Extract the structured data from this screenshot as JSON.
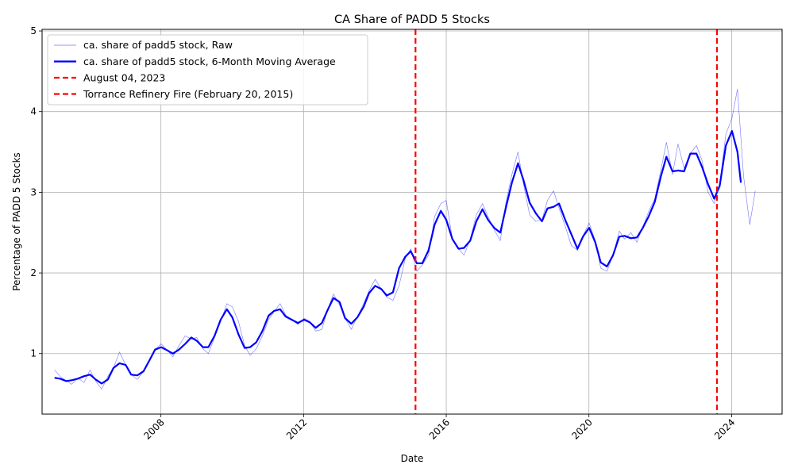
{
  "chart_data": {
    "type": "line",
    "title": "CA Share of PADD 5 Stocks",
    "xlabel": "Date",
    "ylabel": "Percentage of PADD 5 Stocks",
    "xlim": [
      "2004-09-01",
      "2025-06-01"
    ],
    "ylim": [
      0.25,
      5.02
    ],
    "x_ticks": [
      "2008-01-01",
      "2012-01-01",
      "2016-01-01",
      "2020-01-01",
      "2024-01-01"
    ],
    "x_tick_labels": [
      "2008",
      "2012",
      "2016",
      "2020",
      "2024"
    ],
    "y_ticks": [
      1,
      2,
      3,
      4,
      5
    ],
    "y_tick_labels": [
      "1",
      "2",
      "3",
      "4",
      "5"
    ],
    "grid": true,
    "legend_position": "top-left",
    "colors": {
      "raw": "#0000ff",
      "moving_average": "#0000ff",
      "vline": "#ff0000"
    },
    "series": [
      {
        "name": "ca. share of padd5 stock, Raw",
        "style": "thin",
        "points": [
          [
            "2005-01-07",
            0.8
          ],
          [
            "2005-03-04",
            0.72
          ],
          [
            "2005-05-06",
            0.66
          ],
          [
            "2005-07-01",
            0.62
          ],
          [
            "2005-09-02",
            0.7
          ],
          [
            "2005-11-04",
            0.64
          ],
          [
            "2006-01-06",
            0.8
          ],
          [
            "2006-03-03",
            0.66
          ],
          [
            "2006-05-05",
            0.56
          ],
          [
            "2006-07-07",
            0.72
          ],
          [
            "2006-09-01",
            0.82
          ],
          [
            "2006-11-03",
            1.02
          ],
          [
            "2007-01-05",
            0.86
          ],
          [
            "2007-03-02",
            0.74
          ],
          [
            "2007-05-04",
            0.68
          ],
          [
            "2007-07-06",
            0.78
          ],
          [
            "2007-09-07",
            0.92
          ],
          [
            "2007-11-02",
            1.05
          ],
          [
            "2008-01-04",
            1.12
          ],
          [
            "2008-03-07",
            1.04
          ],
          [
            "2008-05-02",
            0.96
          ],
          [
            "2008-07-04",
            1.1
          ],
          [
            "2008-09-05",
            1.22
          ],
          [
            "2008-11-07",
            1.18
          ],
          [
            "2009-01-02",
            1.2
          ],
          [
            "2009-03-06",
            1.06
          ],
          [
            "2009-05-01",
            1.0
          ],
          [
            "2009-07-03",
            1.2
          ],
          [
            "2009-09-04",
            1.4
          ],
          [
            "2009-11-06",
            1.62
          ],
          [
            "2010-01-01",
            1.58
          ],
          [
            "2010-03-05",
            1.4
          ],
          [
            "2010-05-07",
            1.1
          ],
          [
            "2010-07-02",
            0.98
          ],
          [
            "2010-09-03",
            1.06
          ],
          [
            "2010-11-05",
            1.22
          ],
          [
            "2011-01-07",
            1.42
          ],
          [
            "2011-03-04",
            1.52
          ],
          [
            "2011-05-06",
            1.62
          ],
          [
            "2011-07-01",
            1.48
          ],
          [
            "2011-09-02",
            1.42
          ],
          [
            "2011-11-04",
            1.36
          ],
          [
            "2012-01-06",
            1.44
          ],
          [
            "2012-03-02",
            1.4
          ],
          [
            "2012-05-04",
            1.28
          ],
          [
            "2012-07-06",
            1.3
          ],
          [
            "2012-09-07",
            1.56
          ],
          [
            "2012-11-02",
            1.74
          ],
          [
            "2013-01-04",
            1.6
          ],
          [
            "2013-03-01",
            1.44
          ],
          [
            "2013-05-03",
            1.3
          ],
          [
            "2013-07-05",
            1.46
          ],
          [
            "2013-09-06",
            1.62
          ],
          [
            "2013-11-01",
            1.78
          ],
          [
            "2014-01-03",
            1.92
          ],
          [
            "2014-03-07",
            1.8
          ],
          [
            "2014-05-02",
            1.7
          ],
          [
            "2014-07-04",
            1.66
          ],
          [
            "2014-09-05",
            1.84
          ],
          [
            "2014-11-07",
            2.18
          ],
          [
            "2015-01-02",
            2.3
          ],
          [
            "2015-03-06",
            2.02
          ],
          [
            "2015-05-01",
            2.1
          ],
          [
            "2015-07-03",
            2.22
          ],
          [
            "2015-09-04",
            2.7
          ],
          [
            "2015-11-06",
            2.86
          ],
          [
            "2016-01-01",
            2.9
          ],
          [
            "2016-03-04",
            2.42
          ],
          [
            "2016-05-06",
            2.3
          ],
          [
            "2016-07-01",
            2.22
          ],
          [
            "2016-09-02",
            2.42
          ],
          [
            "2016-11-04",
            2.72
          ],
          [
            "2017-01-06",
            2.86
          ],
          [
            "2017-03-03",
            2.7
          ],
          [
            "2017-05-05",
            2.54
          ],
          [
            "2017-07-07",
            2.4
          ],
          [
            "2017-09-01",
            2.86
          ],
          [
            "2017-11-03",
            3.22
          ],
          [
            "2018-01-05",
            3.5
          ],
          [
            "2018-03-02",
            3.1
          ],
          [
            "2018-05-04",
            2.72
          ],
          [
            "2018-07-06",
            2.64
          ],
          [
            "2018-09-07",
            2.66
          ],
          [
            "2018-11-02",
            2.9
          ],
          [
            "2019-01-04",
            3.02
          ],
          [
            "2019-03-01",
            2.8
          ],
          [
            "2019-05-03",
            2.58
          ],
          [
            "2019-07-05",
            2.34
          ],
          [
            "2019-09-06",
            2.28
          ],
          [
            "2019-11-01",
            2.46
          ],
          [
            "2020-01-03",
            2.62
          ],
          [
            "2020-03-06",
            2.4
          ],
          [
            "2020-05-01",
            2.06
          ],
          [
            "2020-07-03",
            2.02
          ],
          [
            "2020-09-04",
            2.22
          ],
          [
            "2020-11-06",
            2.52
          ],
          [
            "2021-01-01",
            2.42
          ],
          [
            "2021-03-05",
            2.5
          ],
          [
            "2021-05-07",
            2.38
          ],
          [
            "2021-07-02",
            2.56
          ],
          [
            "2021-09-03",
            2.76
          ],
          [
            "2021-11-05",
            2.92
          ],
          [
            "2022-01-07",
            3.28
          ],
          [
            "2022-03-04",
            3.62
          ],
          [
            "2022-05-06",
            3.22
          ],
          [
            "2022-07-01",
            3.6
          ],
          [
            "2022-09-02",
            3.3
          ],
          [
            "2022-11-04",
            3.48
          ],
          [
            "2023-01-06",
            3.58
          ],
          [
            "2023-03-03",
            3.4
          ],
          [
            "2023-05-05",
            3.0
          ],
          [
            "2023-07-07",
            2.86
          ],
          [
            "2023-09-01",
            3.1
          ],
          [
            "2023-11-03",
            3.72
          ],
          [
            "2024-01-05",
            3.92
          ],
          [
            "2024-03-01",
            4.28
          ],
          [
            "2024-05-03",
            3.2
          ],
          [
            "2024-07-05",
            2.6
          ],
          [
            "2024-08-30",
            3.02
          ]
        ]
      },
      {
        "name": "ca. share of padd5 stock, 6-Month Moving Average",
        "style": "thick",
        "points": [
          [
            "2005-01-07",
            0.7
          ],
          [
            "2005-03-04",
            0.69
          ],
          [
            "2005-05-06",
            0.66
          ],
          [
            "2005-07-01",
            0.67
          ],
          [
            "2005-09-02",
            0.69
          ],
          [
            "2005-11-04",
            0.72
          ],
          [
            "2006-01-06",
            0.74
          ],
          [
            "2006-03-03",
            0.68
          ],
          [
            "2006-05-05",
            0.63
          ],
          [
            "2006-07-07",
            0.68
          ],
          [
            "2006-09-01",
            0.82
          ],
          [
            "2006-11-03",
            0.88
          ],
          [
            "2007-01-05",
            0.86
          ],
          [
            "2007-03-02",
            0.74
          ],
          [
            "2007-05-04",
            0.73
          ],
          [
            "2007-07-06",
            0.78
          ],
          [
            "2007-09-07",
            0.92
          ],
          [
            "2007-11-02",
            1.05
          ],
          [
            "2008-01-04",
            1.08
          ],
          [
            "2008-03-07",
            1.04
          ],
          [
            "2008-05-02",
            1.0
          ],
          [
            "2008-07-04",
            1.05
          ],
          [
            "2008-09-05",
            1.12
          ],
          [
            "2008-11-07",
            1.2
          ],
          [
            "2009-01-02",
            1.16
          ],
          [
            "2009-03-06",
            1.08
          ],
          [
            "2009-05-01",
            1.08
          ],
          [
            "2009-07-03",
            1.22
          ],
          [
            "2009-09-04",
            1.42
          ],
          [
            "2009-11-06",
            1.55
          ],
          [
            "2010-01-01",
            1.45
          ],
          [
            "2010-03-05",
            1.24
          ],
          [
            "2010-05-07",
            1.07
          ],
          [
            "2010-07-02",
            1.08
          ],
          [
            "2010-09-03",
            1.14
          ],
          [
            "2010-11-05",
            1.28
          ],
          [
            "2011-01-07",
            1.47
          ],
          [
            "2011-03-04",
            1.53
          ],
          [
            "2011-05-06",
            1.55
          ],
          [
            "2011-07-01",
            1.46
          ],
          [
            "2011-09-02",
            1.42
          ],
          [
            "2011-11-04",
            1.38
          ],
          [
            "2012-01-06",
            1.42
          ],
          [
            "2012-03-02",
            1.39
          ],
          [
            "2012-05-04",
            1.32
          ],
          [
            "2012-07-06",
            1.38
          ],
          [
            "2012-09-07",
            1.55
          ],
          [
            "2012-11-02",
            1.69
          ],
          [
            "2013-01-04",
            1.64
          ],
          [
            "2013-03-01",
            1.44
          ],
          [
            "2013-05-03",
            1.37
          ],
          [
            "2013-07-05",
            1.45
          ],
          [
            "2013-09-06",
            1.58
          ],
          [
            "2013-11-01",
            1.75
          ],
          [
            "2014-01-03",
            1.84
          ],
          [
            "2014-03-07",
            1.8
          ],
          [
            "2014-05-02",
            1.72
          ],
          [
            "2014-07-04",
            1.76
          ],
          [
            "2014-09-05",
            2.06
          ],
          [
            "2014-11-07",
            2.2
          ],
          [
            "2015-01-02",
            2.27
          ],
          [
            "2015-03-06",
            2.12
          ],
          [
            "2015-05-01",
            2.12
          ],
          [
            "2015-07-03",
            2.28
          ],
          [
            "2015-09-04",
            2.6
          ],
          [
            "2015-11-06",
            2.77
          ],
          [
            "2016-01-01",
            2.66
          ],
          [
            "2016-03-04",
            2.42
          ],
          [
            "2016-05-06",
            2.3
          ],
          [
            "2016-07-01",
            2.31
          ],
          [
            "2016-09-02",
            2.4
          ],
          [
            "2016-11-04",
            2.64
          ],
          [
            "2017-01-06",
            2.79
          ],
          [
            "2017-03-03",
            2.66
          ],
          [
            "2017-05-05",
            2.56
          ],
          [
            "2017-07-07",
            2.5
          ],
          [
            "2017-09-01",
            2.8
          ],
          [
            "2017-11-03",
            3.12
          ],
          [
            "2018-01-05",
            3.36
          ],
          [
            "2018-03-02",
            3.15
          ],
          [
            "2018-05-04",
            2.87
          ],
          [
            "2018-07-06",
            2.74
          ],
          [
            "2018-09-07",
            2.64
          ],
          [
            "2018-11-02",
            2.8
          ],
          [
            "2019-01-04",
            2.82
          ],
          [
            "2019-03-01",
            2.86
          ],
          [
            "2019-05-03",
            2.66
          ],
          [
            "2019-07-05",
            2.48
          ],
          [
            "2019-09-06",
            2.3
          ],
          [
            "2019-11-01",
            2.45
          ],
          [
            "2020-01-03",
            2.56
          ],
          [
            "2020-03-06",
            2.38
          ],
          [
            "2020-05-01",
            2.13
          ],
          [
            "2020-07-03",
            2.08
          ],
          [
            "2020-09-04",
            2.22
          ],
          [
            "2020-11-06",
            2.45
          ],
          [
            "2021-01-01",
            2.46
          ],
          [
            "2021-03-05",
            2.43
          ],
          [
            "2021-05-07",
            2.44
          ],
          [
            "2021-07-02",
            2.55
          ],
          [
            "2021-09-03",
            2.7
          ],
          [
            "2021-11-05",
            2.88
          ],
          [
            "2022-01-07",
            3.2
          ],
          [
            "2022-03-04",
            3.44
          ],
          [
            "2022-05-06",
            3.26
          ],
          [
            "2022-07-01",
            3.27
          ],
          [
            "2022-09-02",
            3.26
          ],
          [
            "2022-11-04",
            3.48
          ],
          [
            "2023-01-06",
            3.48
          ],
          [
            "2023-03-03",
            3.32
          ],
          [
            "2023-05-05",
            3.1
          ],
          [
            "2023-07-07",
            2.92
          ],
          [
            "2023-09-01",
            3.08
          ],
          [
            "2023-11-03",
            3.58
          ],
          [
            "2024-01-05",
            3.76
          ],
          [
            "2024-03-01",
            3.5
          ],
          [
            "2024-04-05",
            3.12
          ]
        ]
      }
    ],
    "vlines": [
      {
        "name": "August 04, 2023",
        "x": "2023-08-04",
        "style": "dashed"
      },
      {
        "name": "Torrance Refinery Fire (February 20, 2015)",
        "x": "2015-02-20",
        "style": "dashed"
      }
    ]
  }
}
